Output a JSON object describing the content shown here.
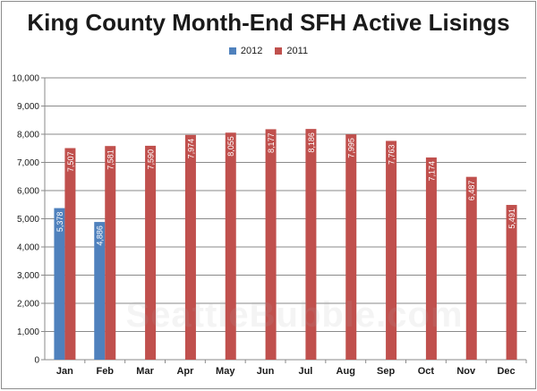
{
  "chart_data": {
    "type": "bar",
    "title": "King County Month-End SFH Active Lisings",
    "categories": [
      "Jan",
      "Feb",
      "Mar",
      "Apr",
      "May",
      "Jun",
      "Jul",
      "Aug",
      "Sep",
      "Oct",
      "Nov",
      "Dec"
    ],
    "series": [
      {
        "name": "2012",
        "color": "#4f81bd",
        "values": [
          5378,
          4886,
          null,
          null,
          null,
          null,
          null,
          null,
          null,
          null,
          null,
          null
        ]
      },
      {
        "name": "2011",
        "color": "#c0504d",
        "values": [
          7507,
          7581,
          7590,
          7974,
          8055,
          8177,
          8186,
          7995,
          7763,
          7174,
          6487,
          5491
        ]
      }
    ],
    "ylim": [
      0,
      10000
    ],
    "yticks": [
      "0",
      "1,000",
      "2,000",
      "3,000",
      "4,000",
      "5,000",
      "6,000",
      "7,000",
      "8,000",
      "9,000",
      "10,000"
    ],
    "grid": true,
    "legend_position": "top-center",
    "data_labels": "rotated inside bar",
    "watermark": "SeattleBubble.com"
  }
}
